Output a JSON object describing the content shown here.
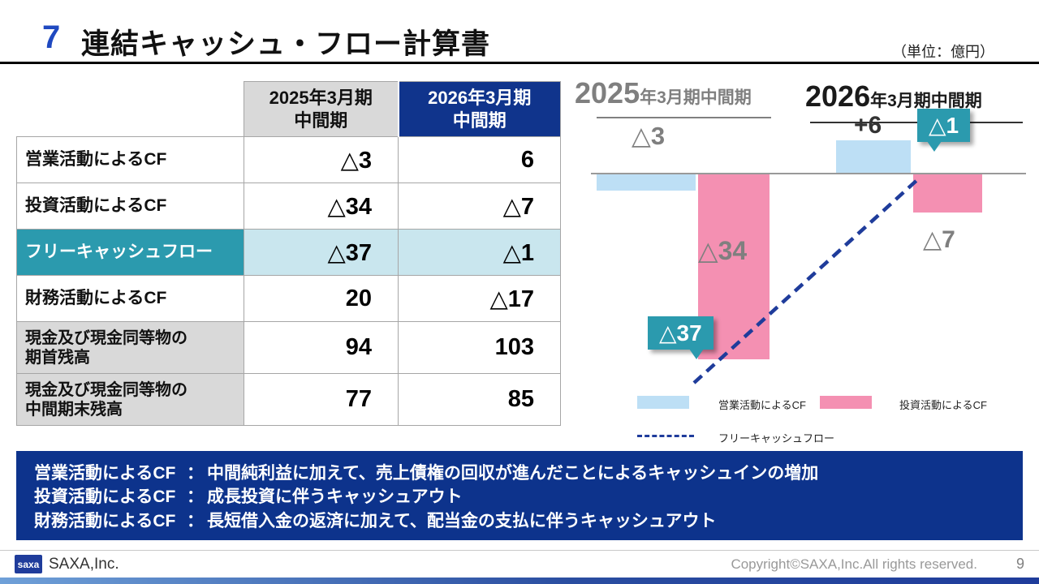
{
  "colors": {
    "accent_blue": "#1F49C0",
    "navy": "#10348C",
    "teal": "#2B9AAE",
    "teal_light": "#C9E6EE",
    "gray_cell": "#D9D9D9",
    "bar_blue": "#BDDFF5",
    "bar_pink": "#F490B2",
    "gray_text": "#7F7F7F"
  },
  "header": {
    "number": "7",
    "title": "連結キャッシュ・フロー計算書",
    "unit": "（単位：億円）"
  },
  "table": {
    "headers": [
      "2025年3月期\n中間期",
      "2026年3月期\n中間期"
    ],
    "rows": [
      {
        "label": "営業活動によるCF",
        "v1": "△3",
        "v2": "6"
      },
      {
        "label": "投資活動によるCF",
        "v1": "△34",
        "v2": "△7"
      },
      {
        "label": "フリーキャッシュフロー",
        "v1": "△37",
        "v2": "△1"
      },
      {
        "label": "財務活動によるCF",
        "v1": "20",
        "v2": "△17"
      },
      {
        "label": "現金及び現金同等物の\n期首残高",
        "v1": "94",
        "v2": "103"
      },
      {
        "label": "現金及び現金同等物の\n中間期末残高",
        "v1": "77",
        "v2": "85"
      }
    ]
  },
  "chart": {
    "periods": [
      {
        "year": "2025",
        "suffix": "年3月期中間期"
      },
      {
        "year": "2026",
        "suffix": "年3月期中間期"
      }
    ],
    "labels": {
      "op_2025": "△3",
      "inv_2025": "△34",
      "fcf_2025": "△37",
      "op_2026": "+6",
      "inv_2026": "△7",
      "fcf_2026": "△1"
    },
    "legend": [
      {
        "name": "営業活動によるCF"
      },
      {
        "name": "投資活動によるCF"
      },
      {
        "name": "フリーキャッシュフロー"
      }
    ]
  },
  "chart_data": {
    "type": "bar",
    "categories": [
      "2025年3月期中間期",
      "2026年3月期中間期"
    ],
    "series": [
      {
        "name": "営業活動によるCF",
        "type": "bar",
        "values": [
          -3,
          6
        ],
        "color": "#BDDFF5"
      },
      {
        "name": "投資活動によるCF",
        "type": "bar",
        "values": [
          -34,
          -7
        ],
        "color": "#F490B2"
      },
      {
        "name": "フリーキャッシュフロー",
        "type": "dashed-line",
        "values": [
          -37,
          -1
        ],
        "color": "#1F3C9B"
      }
    ],
    "unit": "億円",
    "baseline": 0,
    "legend_position": "bottom"
  },
  "notes": {
    "separator": "：",
    "lines": [
      {
        "label": "営業活動によるCF",
        "text": "中間純利益に加えて、売上債権の回収が進んだことによるキャッシュインの増加"
      },
      {
        "label": "投資活動によるCF",
        "text": "成長投資に伴うキャッシュアウト"
      },
      {
        "label": "財務活動によるCF",
        "text": "長短借入金の返済に加えて、配当金の支払に伴うキャッシュアウト"
      }
    ]
  },
  "footer": {
    "logo": "saxa",
    "company": "SAXA,Inc.",
    "copyright": "Copyright©SAXA,Inc.All rights reserved.",
    "page": "9"
  }
}
